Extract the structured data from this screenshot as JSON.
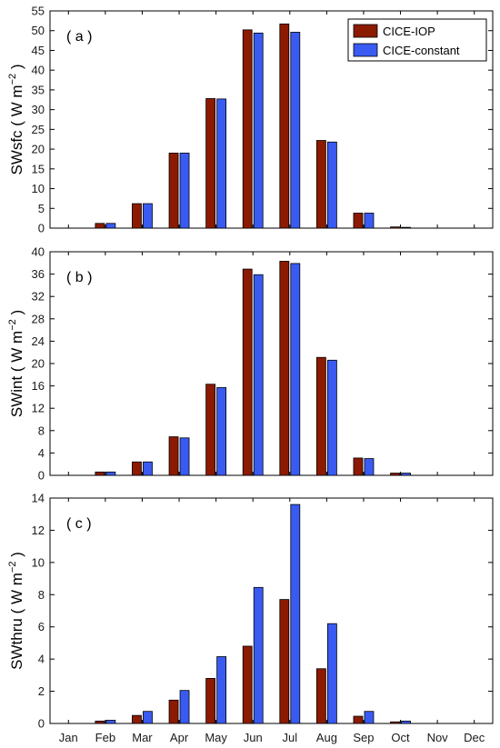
{
  "chart_data": [
    {
      "type": "bar",
      "panel": "( a )",
      "ylabel": "SWsfc ( W m",
      "ylabel_exp": "−2",
      "ylabel_close": " )",
      "ylim": [
        0,
        55
      ],
      "yticks": [
        0,
        5,
        10,
        15,
        20,
        25,
        30,
        35,
        40,
        45,
        50,
        55
      ],
      "categories": [
        "Jan",
        "Feb",
        "Mar",
        "Apr",
        "May",
        "Jun",
        "Jul",
        "Aug",
        "Sep",
        "Oct",
        "Nov",
        "Dec"
      ],
      "series": [
        {
          "name": "CICE-IOP",
          "values": [
            0,
            1.2,
            6.2,
            19.0,
            32.8,
            50.2,
            51.7,
            22.2,
            3.8,
            0.3,
            0,
            0
          ]
        },
        {
          "name": "CICE-constant",
          "values": [
            0,
            1.2,
            6.2,
            19.0,
            32.7,
            49.4,
            49.6,
            21.8,
            3.8,
            0.2,
            0,
            0
          ]
        }
      ],
      "legend": "top-right"
    },
    {
      "type": "bar",
      "panel": "( b )",
      "ylabel": "SWint ( W m",
      "ylabel_exp": "−2",
      "ylabel_close": " )",
      "ylim": [
        0,
        40
      ],
      "yticks": [
        0,
        4,
        8,
        12,
        16,
        20,
        24,
        28,
        32,
        36,
        40
      ],
      "categories": [
        "Jan",
        "Feb",
        "Mar",
        "Apr",
        "May",
        "Jun",
        "Jul",
        "Aug",
        "Sep",
        "Oct",
        "Nov",
        "Dec"
      ],
      "series": [
        {
          "name": "CICE-IOP",
          "values": [
            0,
            0.6,
            2.4,
            6.9,
            16.3,
            36.9,
            38.3,
            21.1,
            3.1,
            0.4,
            0,
            0
          ]
        },
        {
          "name": "CICE-constant",
          "values": [
            0,
            0.6,
            2.4,
            6.7,
            15.7,
            35.9,
            37.9,
            20.6,
            3.0,
            0.4,
            0,
            0
          ]
        }
      ]
    },
    {
      "type": "bar",
      "panel": "( c )",
      "ylabel": "SWthru ( W m",
      "ylabel_exp": "−2",
      "ylabel_close": " )",
      "ylim": [
        0,
        14
      ],
      "yticks": [
        0,
        2,
        4,
        6,
        8,
        10,
        12,
        14
      ],
      "categories": [
        "Jan",
        "Feb",
        "Mar",
        "Apr",
        "May",
        "Jun",
        "Jul",
        "Aug",
        "Sep",
        "Oct",
        "Nov",
        "Dec"
      ],
      "series": [
        {
          "name": "CICE-IOP",
          "values": [
            0,
            0.15,
            0.5,
            1.45,
            2.8,
            4.8,
            7.7,
            3.4,
            0.45,
            0.1,
            0,
            0
          ]
        },
        {
          "name": "CICE-constant",
          "values": [
            0,
            0.2,
            0.75,
            2.05,
            4.15,
            8.45,
            13.6,
            6.2,
            0.75,
            0.15,
            0,
            0
          ]
        }
      ]
    }
  ],
  "colors": {
    "CICE-IOP": "#8b1a00",
    "CICE-constant": "#3a5bf2"
  }
}
